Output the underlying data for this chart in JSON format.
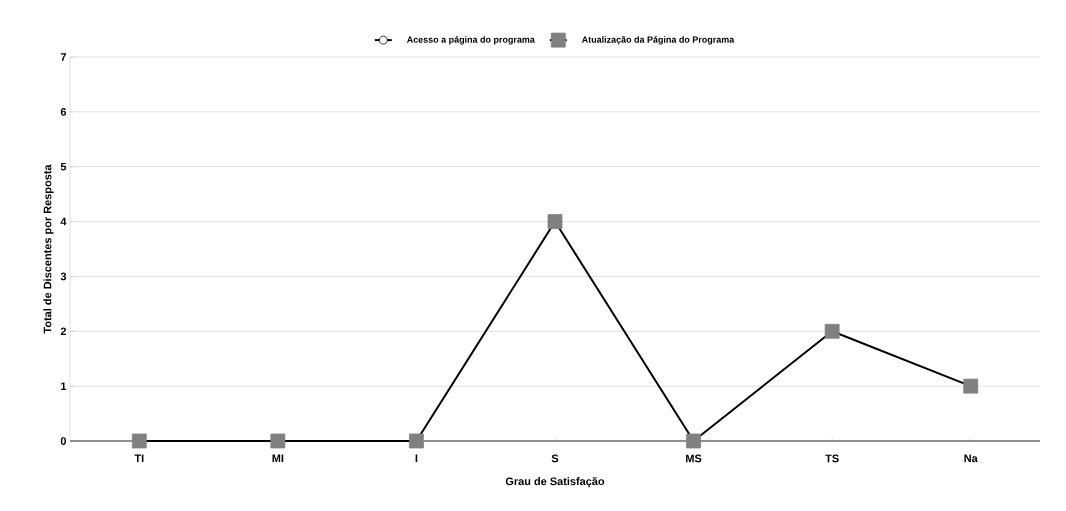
{
  "chart_data": {
    "type": "line",
    "xlabel": "Grau de Satisfação",
    "ylabel": "Total de Discentes por Resposta",
    "categories": [
      "TI",
      "MI",
      "I",
      "S",
      "MS",
      "TS",
      "Na"
    ],
    "series": [
      {
        "name": "Acesso a página do programa",
        "color": "#ffffff",
        "marker": "circle",
        "values": [
          null,
          null,
          null,
          null,
          null,
          null,
          null
        ]
      },
      {
        "name": "Atualização da Página do Programa",
        "color": "#808080",
        "marker": "square",
        "values": [
          0,
          0,
          0,
          4,
          0,
          2,
          1
        ]
      }
    ],
    "ylim": [
      0,
      7
    ],
    "yticks": [
      0,
      1,
      2,
      3,
      4,
      5,
      6,
      7
    ],
    "grid": "y",
    "legend": "top",
    "line_style": "solid"
  }
}
